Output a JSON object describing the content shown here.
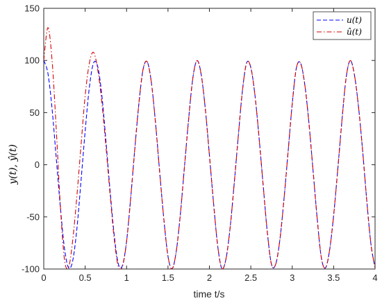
{
  "chart_data": {
    "type": "line",
    "title": "",
    "xlabel": "time t/s",
    "ylabel": "y(t), ŷ(t)",
    "xlim": [
      0,
      4
    ],
    "ylim": [
      -100,
      150
    ],
    "xticks": [
      0,
      0.5,
      1,
      1.5,
      2,
      2.5,
      3,
      3.5,
      4
    ],
    "xtick_labels": [
      "0",
      "0.5",
      "1",
      "1.5",
      "2",
      "2.5",
      "3",
      "3.5",
      "4"
    ],
    "yticks": [
      -100,
      -50,
      0,
      50,
      100,
      150
    ],
    "ytick_labels": [
      "-100",
      "-50",
      "0",
      "50",
      "100",
      "150"
    ],
    "grid": false,
    "legend_position": "top-right",
    "series": [
      {
        "name": "u(t)",
        "color": "#0000ff",
        "style": "dashed",
        "x": [
          0,
          0.05,
          0.1,
          0.15,
          0.2,
          0.25,
          0.3,
          0.35,
          0.4,
          0.45,
          0.5,
          0.55,
          0.6,
          0.65,
          0.7,
          0.75,
          0.8,
          0.85,
          0.9,
          0.95,
          1.0,
          1.05,
          1.1,
          1.15,
          1.2,
          1.25,
          1.3,
          1.35,
          1.4,
          1.45,
          1.5,
          1.55,
          1.6,
          1.65,
          1.7,
          1.75,
          1.8,
          1.85,
          1.9,
          1.95,
          2.0,
          2.05,
          2.1,
          2.15,
          2.2,
          2.25,
          2.3,
          2.35,
          2.4,
          2.45,
          2.5,
          2.55,
          2.6,
          2.65,
          2.7,
          2.75,
          2.8,
          2.85,
          2.9,
          2.95,
          3.0,
          3.05,
          3.1,
          3.15,
          3.2,
          3.25,
          3.3,
          3.35,
          3.4,
          3.45,
          3.5,
          3.55,
          3.6,
          3.65,
          3.7,
          3.75,
          3.8,
          3.85,
          3.9,
          3.95,
          4.0
        ],
        "y": [
          100,
          87.8,
          54.0,
          7.1,
          -40.2,
          -80.1,
          -98.9,
          -91.9,
          -61.3,
          -15.4,
          32.3,
          73.8,
          97.3,
          94.6,
          67.6,
          23.6,
          -24.1,
          -66.9,
          -95.0,
          -96.6,
          -73.3,
          -31.7,
          15.8,
          59.7,
          91.7,
          98.5,
          78.4,
          39.5,
          -7.4,
          -52.2,
          -87.8,
          -99.7,
          -82.9,
          -46.9,
          -0.9,
          44.4,
          83.1,
          99.9,
          86.9,
          54.0,
          9.3,
          -36.6,
          -77.8,
          -99.4,
          -90.3,
          -60.5,
          -17.6,
          28.6,
          71.9,
          97.8,
          93.2,
          66.7,
          25.6,
          -20.5,
          -65.3,
          -95.7,
          -95.5,
          -72.5,
          -33.4,
          12.4,
          58.3,
          92.7,
          97.5,
          77.7,
          41.4,
          -4.1,
          -50.3,
          -88.4,
          -99.0,
          -82.5,
          -48.5,
          -4.3,
          42.2,
          82.9,
          99.9,
          86.6,
          55.7,
          13.5,
          -34.4,
          -75.9,
          -98.9
        ]
      },
      {
        "name": "û(t)",
        "color": "#d40000",
        "style": "dashdot",
        "x": [
          0,
          0.05,
          0.1,
          0.15,
          0.2,
          0.25,
          0.3,
          0.35,
          0.4,
          0.45,
          0.5,
          0.55,
          0.6,
          0.65,
          0.7,
          0.75,
          0.8,
          0.85,
          0.9,
          0.95,
          1.0,
          1.05,
          1.1,
          1.15,
          1.2,
          1.25,
          1.3,
          1.35,
          1.4,
          1.45,
          1.5,
          1.55,
          1.6,
          1.65,
          1.7,
          1.75,
          1.8,
          1.85,
          1.9,
          1.95,
          2.0,
          2.05,
          2.1,
          2.15,
          2.2,
          2.25,
          2.3,
          2.35,
          2.4,
          2.45,
          2.5,
          2.55,
          2.6,
          2.65,
          2.7,
          2.75,
          2.8,
          2.85,
          2.9,
          2.95,
          3.0,
          3.05,
          3.1,
          3.15,
          3.2,
          3.25,
          3.3,
          3.35,
          3.4,
          3.45,
          3.5,
          3.55,
          3.6,
          3.65,
          3.7,
          3.75,
          3.8,
          3.85,
          3.9,
          3.95,
          4.0
        ],
        "y": [
          100,
          131.5,
          100.5,
          35.4,
          -38.9,
          -90.7,
          -98.4,
          -72.1,
          -30.1,
          18.6,
          66.2,
          97.2,
          107.8,
          92.0,
          60.8,
          18.2,
          -27.6,
          -70.6,
          -97.6,
          -97.5,
          -73.7,
          -31.4,
          16.0,
          60.0,
          91.9,
          98.6,
          78.4,
          39.5,
          -7.4,
          -52.2,
          -87.8,
          -99.7,
          -82.9,
          -46.9,
          -0.9,
          44.4,
          83.1,
          99.9,
          86.9,
          54.0,
          9.3,
          -36.6,
          -77.8,
          -99.4,
          -90.3,
          -60.5,
          -17.6,
          28.6,
          71.9,
          97.8,
          93.2,
          66.7,
          25.6,
          -20.5,
          -65.3,
          -95.7,
          -95.5,
          -72.5,
          -33.4,
          12.4,
          58.3,
          92.7,
          97.5,
          77.7,
          41.4,
          -4.1,
          -50.3,
          -88.4,
          -99.0,
          -82.5,
          -48.5,
          -4.3,
          42.2,
          82.9,
          99.9,
          86.6,
          55.7,
          13.5,
          -34.4,
          -75.9,
          -98.9
        ]
      }
    ]
  }
}
